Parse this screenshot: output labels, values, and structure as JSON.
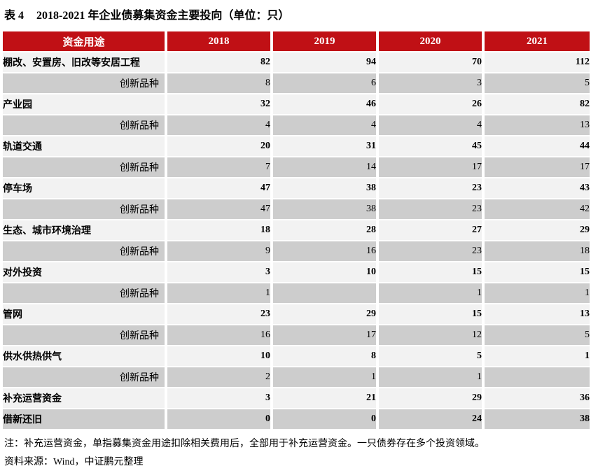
{
  "title": {
    "prefix": "表 4",
    "text": "2018-2021 年企业债募集资金主要投向（单位：只）"
  },
  "table": {
    "header": [
      "资金用途",
      "2018",
      "2019",
      "2020",
      "2021"
    ],
    "rows": [
      {
        "label": "棚改、安置房、旧改等安居工程",
        "style": "main",
        "values": [
          "82",
          "94",
          "70",
          "112"
        ]
      },
      {
        "label": "创新品种",
        "style": "sub",
        "values": [
          "8",
          "6",
          "3",
          "5"
        ]
      },
      {
        "label": "产业园",
        "style": "main",
        "values": [
          "32",
          "46",
          "26",
          "82"
        ]
      },
      {
        "label": "创新品种",
        "style": "sub",
        "values": [
          "4",
          "4",
          "4",
          "13"
        ]
      },
      {
        "label": "轨道交通",
        "style": "main",
        "values": [
          "20",
          "31",
          "45",
          "44"
        ]
      },
      {
        "label": "创新品种",
        "style": "sub",
        "values": [
          "7",
          "14",
          "17",
          "17"
        ]
      },
      {
        "label": "停车场",
        "style": "main",
        "values": [
          "47",
          "38",
          "23",
          "43"
        ]
      },
      {
        "label": "创新品种",
        "style": "sub",
        "values": [
          "47",
          "38",
          "23",
          "42"
        ]
      },
      {
        "label": "生态、城市环境治理",
        "style": "main",
        "values": [
          "18",
          "28",
          "27",
          "29"
        ]
      },
      {
        "label": "创新品种",
        "style": "sub",
        "values": [
          "9",
          "16",
          "23",
          "18"
        ]
      },
      {
        "label": "对外投资",
        "style": "main",
        "values": [
          "3",
          "10",
          "15",
          "15"
        ]
      },
      {
        "label": "创新品种",
        "style": "sub",
        "values": [
          "1",
          "",
          "1",
          "1"
        ]
      },
      {
        "label": "管网",
        "style": "main",
        "values": [
          "23",
          "29",
          "15",
          "13"
        ]
      },
      {
        "label": "创新品种",
        "style": "sub",
        "values": [
          "16",
          "17",
          "12",
          "5"
        ]
      },
      {
        "label": "供水供热供气",
        "style": "main",
        "values": [
          "10",
          "8",
          "5",
          "1"
        ]
      },
      {
        "label": "创新品种",
        "style": "sub",
        "values": [
          "2",
          "1",
          "1",
          ""
        ]
      },
      {
        "label": "补充运营资金",
        "style": "main",
        "values": [
          "3",
          "21",
          "29",
          "36"
        ]
      },
      {
        "label": "借新还旧",
        "style": "main",
        "values": [
          "0",
          "0",
          "24",
          "38"
        ]
      }
    ]
  },
  "notes": {
    "note": "注：补充运营资金，单指募集资金用途扣除相关费用后，全部用于补充运营资金。一只债券存在多个投资领域。",
    "source": "资料来源：Wind，中证鹏元整理"
  },
  "colors": {
    "header_bg": "#C01015",
    "header_text": "#FFFFFF",
    "row_light": "#F2F2F2",
    "row_gray": "#CDCDCD"
  }
}
